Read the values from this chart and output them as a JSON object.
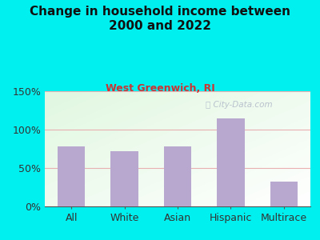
{
  "categories": [
    "All",
    "White",
    "Asian",
    "Hispanic",
    "Multirace"
  ],
  "values": [
    78,
    72,
    78,
    115,
    32
  ],
  "bar_color": "#b8a8d0",
  "title": "Change in household income between\n2000 and 2022",
  "subtitle": "West Greenwich, RI",
  "title_color": "#111111",
  "subtitle_color": "#cc3333",
  "background_color": "#00f0f0",
  "ylim": [
    0,
    150
  ],
  "yticks": [
    0,
    50,
    100,
    150
  ],
  "ytick_labels": [
    "0%",
    "50%",
    "100%",
    "150%"
  ],
  "grid_color": "#e8b0b0",
  "watermark": "City-Data.com",
  "watermark_color": "#b0b8c8"
}
